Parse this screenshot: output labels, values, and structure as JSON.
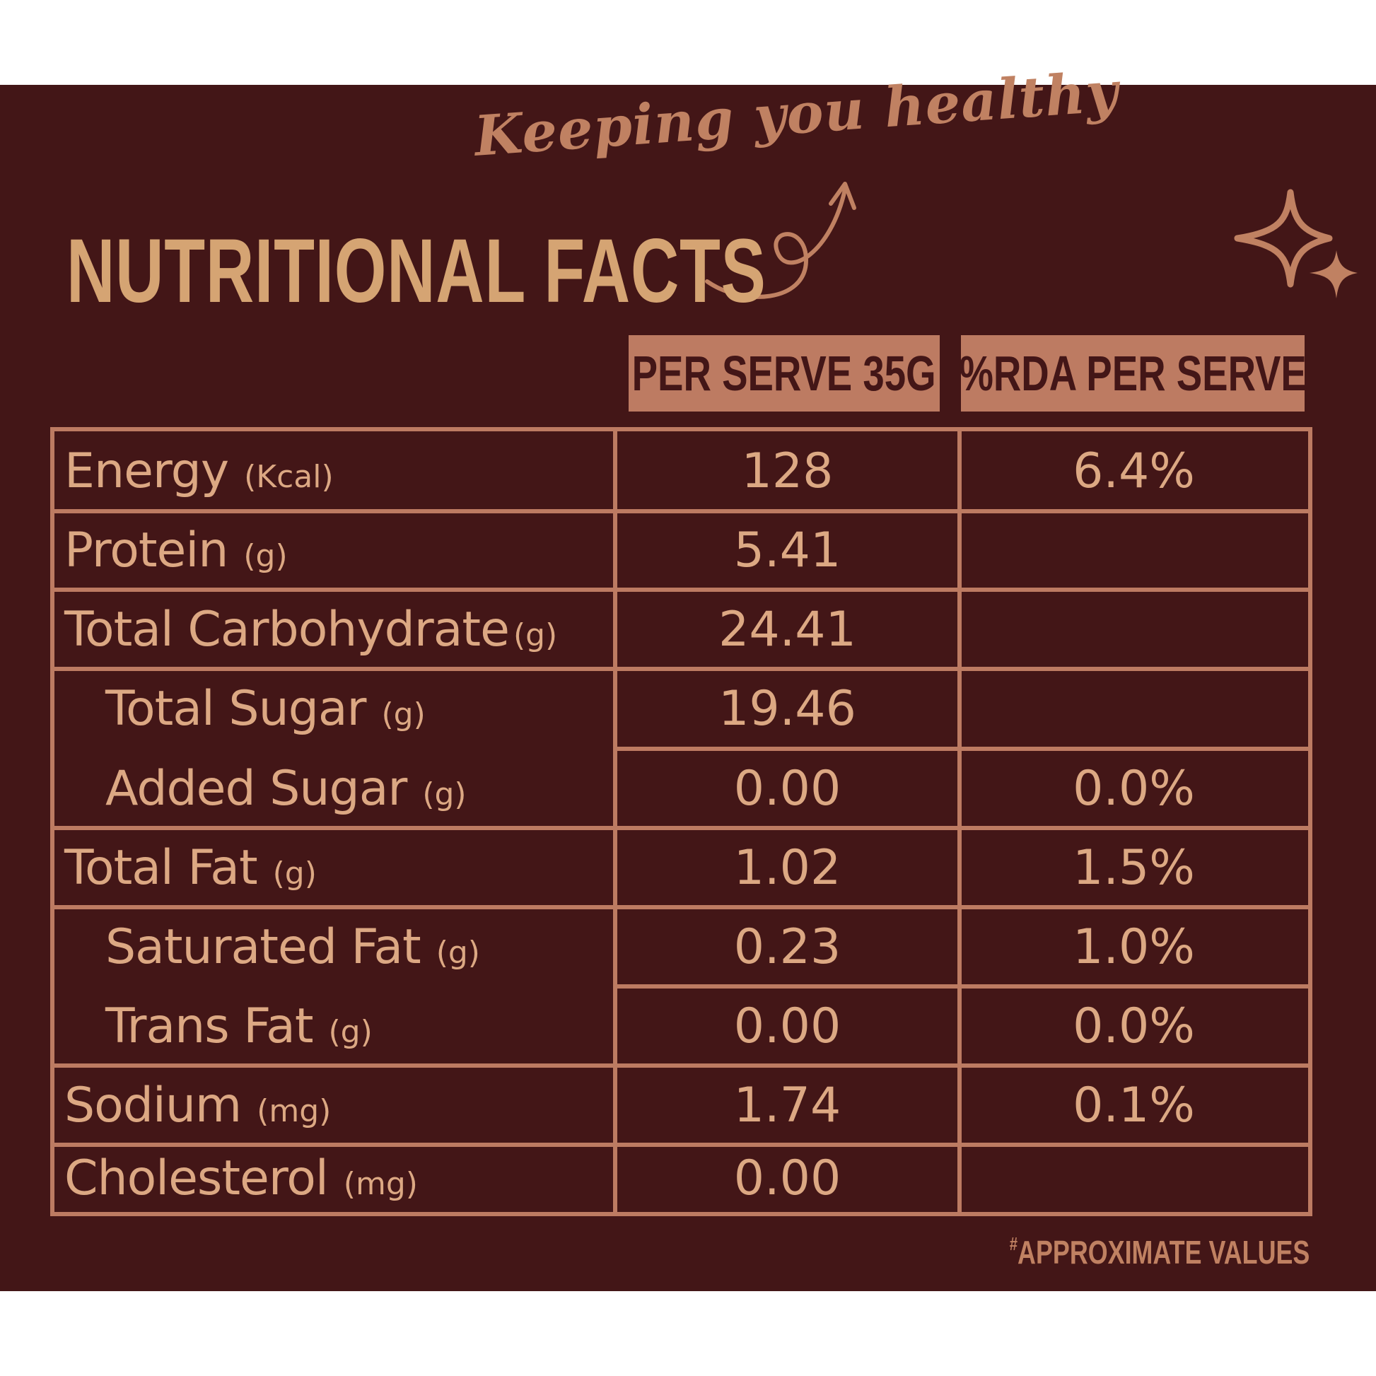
{
  "tagline": "Keeping you healthy",
  "title": "NUTRITIONAL FACTS",
  "headers": {
    "per_serve": "PER SERVE 35G",
    "rda": "%RDA PER SERVE"
  },
  "rows": [
    {
      "name": "Energy",
      "unit": "(Kcal)",
      "value": "128",
      "rda": "6.4%"
    },
    {
      "name": "Protein",
      "unit": "(g)",
      "value": "5.41",
      "rda": ""
    },
    {
      "name": "Total Carbohydrate",
      "unit": "(g)",
      "value": "24.41",
      "rda": ""
    },
    {
      "name": "Total Sugar",
      "unit": "(g)",
      "value": "19.46",
      "rda": ""
    },
    {
      "name": "Added Sugar",
      "unit": "(g)",
      "value": "0.00",
      "rda": "0.0%"
    },
    {
      "name": "Total Fat",
      "unit": "(g)",
      "value": "1.02",
      "rda": "1.5%"
    },
    {
      "name": "Saturated Fat",
      "unit": "(g)",
      "value": "0.23",
      "rda": "1.0%"
    },
    {
      "name": "Trans Fat",
      "unit": "(g)",
      "value": "0.00",
      "rda": "0.0%"
    },
    {
      "name": "Sodium",
      "unit": "(mg)",
      "value": "1.74",
      "rda": "0.1%"
    },
    {
      "name": "Cholesterol",
      "unit": "(mg)",
      "value": "0.00",
      "rda": ""
    }
  ],
  "footnote_mark": "#",
  "footnote": "APPROXIMATE VALUES",
  "colors": {
    "background": "#431617",
    "title": "#d5a473",
    "accent": "#bd7b62",
    "text": "#dca883"
  },
  "icons": [
    "curly-arrow-icon",
    "sparkle-icon"
  ]
}
